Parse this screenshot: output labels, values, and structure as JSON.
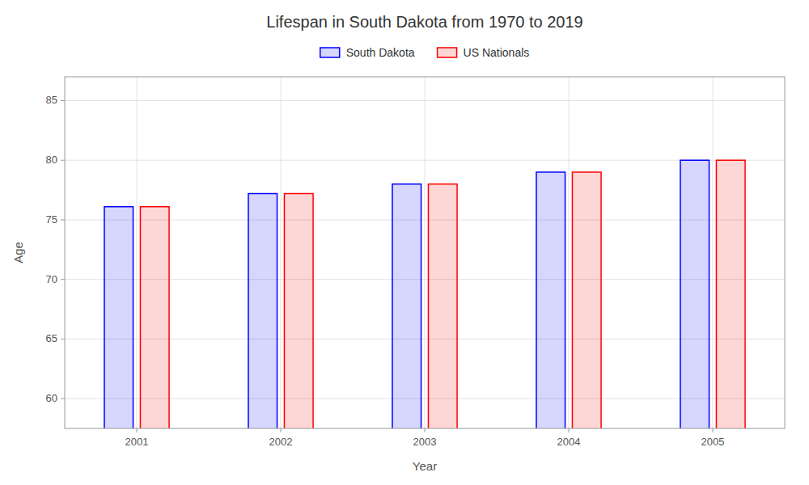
{
  "chart_data": {
    "type": "bar",
    "title": "Lifespan in South Dakota from 1970 to 2019",
    "xlabel": "Year",
    "ylabel": "Age",
    "categories": [
      "2001",
      "2002",
      "2003",
      "2004",
      "2005"
    ],
    "series": [
      {
        "name": "South Dakota",
        "color": "#0000ff",
        "values": [
          76.1,
          77.2,
          78.0,
          79.0,
          80.0
        ]
      },
      {
        "name": "US Nationals",
        "color": "#ff0000",
        "values": [
          76.1,
          77.2,
          78.0,
          79.0,
          80.0
        ]
      }
    ],
    "ylim": [
      57.5,
      87
    ],
    "yticks": [
      60,
      65,
      70,
      75,
      80,
      85
    ],
    "grid": true,
    "legend": "top"
  }
}
